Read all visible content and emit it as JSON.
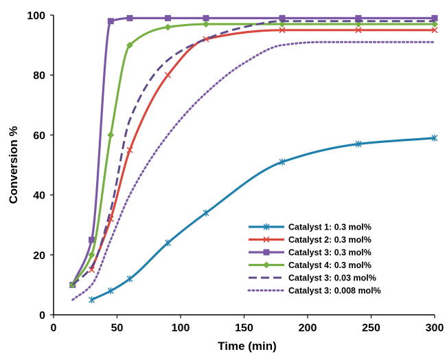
{
  "chart_data": {
    "type": "line",
    "title": "",
    "xlabel": "Time (min)",
    "ylabel": "Conversion %",
    "xlim": [
      0,
      300
    ],
    "ylim": [
      0,
      100
    ],
    "xticks": [
      "0",
      "50",
      "100",
      "150",
      "200",
      "250",
      "300"
    ],
    "yticks": [
      "0",
      "20",
      "40",
      "60",
      "80",
      "100"
    ],
    "grid": false,
    "legend_position": "bottom-right",
    "series": [
      {
        "name": "Catalyst 1: 0.3 mol%",
        "color": "#1f7fad",
        "style": "solid",
        "marker": "asterisk",
        "x": [
          30,
          45,
          60,
          90,
          120,
          180,
          240,
          300
        ],
        "y": [
          5,
          8,
          12,
          24,
          34,
          51,
          57,
          59
        ]
      },
      {
        "name": "Catalyst 2: 0.3 mol%",
        "color": "#d9473f",
        "style": "solid",
        "marker": "x",
        "x": [
          30,
          45,
          60,
          90,
          120,
          180,
          240,
          300
        ],
        "y": [
          15,
          32,
          55,
          80,
          92,
          95,
          95,
          95
        ]
      },
      {
        "name": "Catalyst 3: 0.3 mol%",
        "color": "#7b58a6",
        "style": "solid",
        "marker": "square",
        "x": [
          15,
          30,
          45,
          60,
          90,
          120,
          180,
          240,
          300
        ],
        "y": [
          10,
          25,
          98,
          99,
          99,
          99,
          99,
          99,
          99
        ]
      },
      {
        "name": "Catalyst 4: 0.3 mol%",
        "color": "#76b043",
        "style": "solid",
        "marker": "diamond",
        "x": [
          15,
          30,
          45,
          60,
          90,
          120,
          180,
          240,
          300
        ],
        "y": [
          10,
          20,
          60,
          90,
          96,
          97,
          97,
          97,
          97
        ]
      },
      {
        "name": "Catalyst 3: 0.03 mol%",
        "color": "#5f4b8b",
        "style": "dashed",
        "marker": "none",
        "x": [
          15,
          30,
          45,
          60,
          90,
          120,
          150,
          180,
          240,
          300
        ],
        "y": [
          10,
          16,
          35,
          65,
          85,
          92,
          96,
          98,
          98,
          98
        ]
      },
      {
        "name": "Catalyst 3: 0.008 mol%",
        "color": "#7b58a6",
        "style": "dotted",
        "marker": "none",
        "x": [
          15,
          30,
          45,
          60,
          90,
          120,
          150,
          180,
          210,
          240,
          300
        ],
        "y": [
          5,
          10,
          25,
          40,
          60,
          74,
          84,
          90,
          91,
          91,
          91
        ]
      }
    ]
  }
}
